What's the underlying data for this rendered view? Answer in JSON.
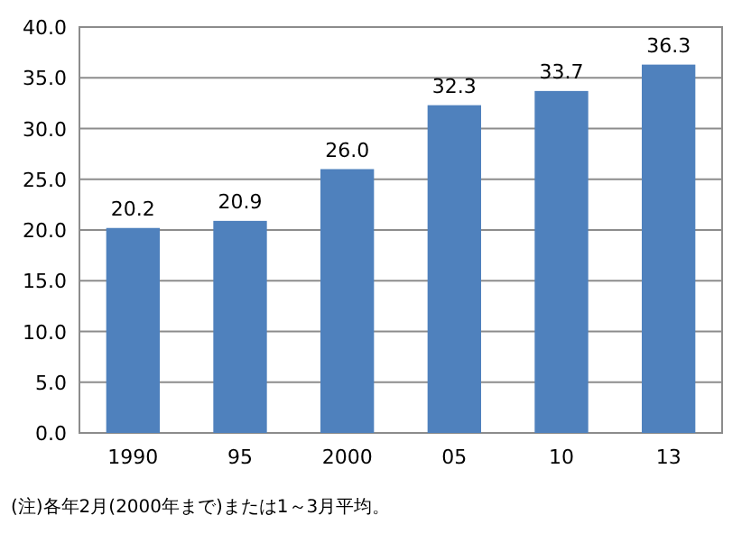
{
  "chart_data": {
    "type": "bar",
    "categories": [
      "1990",
      "95",
      "2000",
      "05",
      "10",
      "13"
    ],
    "values": [
      20.2,
      20.9,
      26.0,
      32.3,
      33.7,
      36.3
    ],
    "value_labels": [
      "20.2",
      "20.9",
      "26.0",
      "32.3",
      "33.7",
      "36.3"
    ],
    "color": "#4f81bd",
    "ylim": [
      0,
      40
    ],
    "yticks": [
      {
        "value": 0,
        "label": "0.0"
      },
      {
        "value": 5,
        "label": "5.0"
      },
      {
        "value": 10,
        "label": "10.0"
      },
      {
        "value": 15,
        "label": "15.0"
      },
      {
        "value": 20,
        "label": "20.0"
      },
      {
        "value": 25,
        "label": "25.0"
      },
      {
        "value": 30,
        "label": "30.0"
      },
      {
        "value": 35,
        "label": "35.0"
      },
      {
        "value": 40,
        "label": "40.0"
      }
    ],
    "grid": "y",
    "annotations": [
      "(注)各年2月(2000年まで)または1～3月平均。"
    ]
  }
}
